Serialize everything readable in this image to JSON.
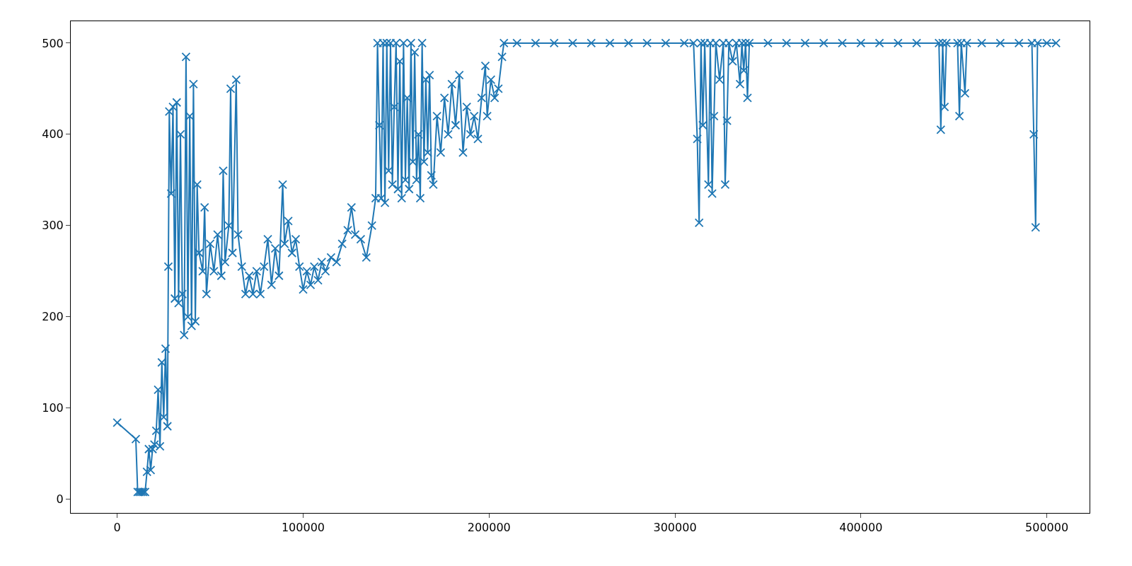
{
  "chart_data": {
    "type": "line",
    "marker": "cross",
    "line_style": "solid",
    "legend": false,
    "xlim": [
      -25000,
      523000
    ],
    "ylim": [
      -15,
      524
    ],
    "xticks": [
      0,
      100000,
      200000,
      300000,
      400000,
      500000
    ],
    "yticks": [
      0,
      100,
      200,
      300,
      400,
      500
    ],
    "series": [
      {
        "color": "#1f77b4",
        "x": [
          0,
          10000,
          11000,
          12000,
          13000,
          14000,
          15000,
          16000,
          17000,
          18000,
          19000,
          20000,
          21000,
          22000,
          23000,
          24000,
          25000,
          26000,
          27000,
          27500,
          28000,
          29000,
          30000,
          31000,
          32000,
          33000,
          34000,
          35000,
          36000,
          37000,
          38000,
          39000,
          40000,
          41000,
          42000,
          43000,
          44000,
          46000,
          47000,
          48000,
          50000,
          52000,
          54000,
          56000,
          57000,
          58000,
          60000,
          61000,
          62000,
          64000,
          65000,
          67000,
          69000,
          71000,
          73000,
          75000,
          77000,
          79000,
          81000,
          83000,
          85000,
          87000,
          89000,
          90000,
          92000,
          94000,
          96000,
          98000,
          100000,
          102000,
          104000,
          106000,
          108000,
          110000,
          112000,
          115000,
          118000,
          121000,
          124000,
          126000,
          128000,
          131000,
          134000,
          137000,
          139000,
          140000,
          141000,
          142000,
          143000,
          144000,
          145000,
          146000,
          147000,
          148000,
          149000,
          150000,
          151000,
          152000,
          153000,
          154000,
          155000,
          156000,
          157000,
          158000,
          159000,
          160000,
          161000,
          162000,
          163000,
          164000,
          165000,
          166000,
          167000,
          168000,
          169000,
          170000,
          172000,
          174000,
          176000,
          178000,
          180000,
          182000,
          184000,
          186000,
          188000,
          190000,
          192000,
          194000,
          196000,
          198000,
          199000,
          201000,
          203000,
          205000,
          207000,
          208000,
          215000,
          225000,
          235000,
          245000,
          255000,
          265000,
          275000,
          285000,
          295000,
          305000,
          310000,
          312000,
          313000,
          314000,
          315000,
          316000,
          318000,
          319000,
          320000,
          321000,
          322000,
          324000,
          326000,
          327000,
          328000,
          329000,
          331000,
          333000,
          335000,
          336000,
          337000,
          338000,
          339000,
          340000,
          350000,
          360000,
          370000,
          380000,
          390000,
          400000,
          410000,
          420000,
          430000,
          442000,
          443000,
          444000,
          445000,
          446000,
          452000,
          453000,
          454000,
          456000,
          457000,
          465000,
          475000,
          485000,
          492000,
          493000,
          494000,
          495000,
          500000,
          505000
        ],
        "values": [
          84,
          66,
          8,
          8,
          8,
          8,
          8,
          30,
          55,
          32,
          55,
          60,
          75,
          120,
          58,
          150,
          90,
          165,
          80,
          255,
          425,
          335,
          430,
          220,
          435,
          215,
          400,
          225,
          180,
          485,
          200,
          420,
          190,
          455,
          195,
          345,
          270,
          250,
          320,
          225,
          280,
          250,
          290,
          245,
          360,
          260,
          300,
          450,
          270,
          460,
          290,
          255,
          225,
          245,
          225,
          250,
          225,
          255,
          285,
          235,
          275,
          245,
          345,
          280,
          305,
          270,
          285,
          255,
          230,
          250,
          235,
          255,
          240,
          260,
          250,
          265,
          260,
          280,
          295,
          320,
          290,
          285,
          265,
          300,
          330,
          500,
          410,
          330,
          500,
          325,
          500,
          360,
          500,
          345,
          430,
          500,
          340,
          480,
          330,
          500,
          350,
          440,
          340,
          500,
          370,
          490,
          350,
          400,
          330,
          500,
          370,
          460,
          380,
          465,
          355,
          345,
          420,
          380,
          440,
          400,
          455,
          410,
          465,
          380,
          430,
          400,
          420,
          395,
          440,
          475,
          420,
          460,
          440,
          450,
          485,
          500,
          500,
          500,
          500,
          500,
          500,
          500,
          500,
          500,
          500,
          500,
          500,
          395,
          303,
          500,
          410,
          500,
          345,
          500,
          335,
          420,
          500,
          460,
          500,
          345,
          415,
          500,
          480,
          500,
          455,
          500,
          470,
          500,
          440,
          500,
          500,
          500,
          500,
          500,
          500,
          500,
          500,
          500,
          500,
          500,
          405,
          500,
          430,
          500,
          500,
          420,
          500,
          445,
          500,
          500,
          500,
          500,
          500,
          400,
          298,
          500,
          500,
          500
        ]
      }
    ]
  }
}
